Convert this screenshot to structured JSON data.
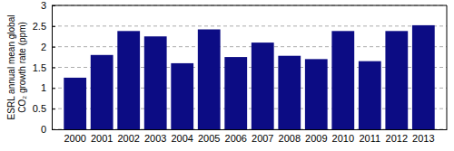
{
  "chart_data": {
    "type": "bar",
    "ylabel": "ESRL annual mean global CO₂ growth rate (ppm)",
    "categories": [
      "2000",
      "2001",
      "2002",
      "2003",
      "2004",
      "2005",
      "2006",
      "2007",
      "2008",
      "2009",
      "2010",
      "2011",
      "2012",
      "2013"
    ],
    "values": [
      1.25,
      1.8,
      2.38,
      2.25,
      1.6,
      2.42,
      1.75,
      2.1,
      1.78,
      1.7,
      2.38,
      1.65,
      2.38,
      2.52
    ],
    "color": "#0c0c84",
    "ylim": [
      0,
      3
    ],
    "yticks": [
      0,
      0.5,
      1,
      1.5,
      2,
      2.5,
      3
    ],
    "grid": true
  }
}
